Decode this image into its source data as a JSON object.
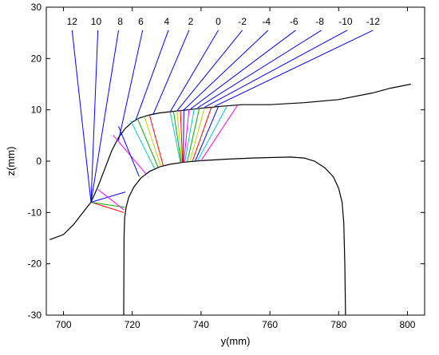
{
  "chart_data": {
    "type": "line",
    "xlabel": "y(mm)",
    "ylabel": "z(mm)",
    "xlim": [
      695,
      805
    ],
    "ylim": [
      -30,
      30
    ],
    "x_ticks": [
      "700",
      "720",
      "740",
      "760",
      "780",
      "800"
    ],
    "y_ticks": [
      "30",
      "20",
      "10",
      "0",
      "-10",
      "-20",
      "-30"
    ],
    "grid": false,
    "series": [
      {
        "color": "#000000",
        "points": [
          [
            696,
            -15.3
          ],
          [
            700,
            -14.3
          ],
          [
            703,
            -12.3
          ],
          [
            706,
            -9.7
          ],
          [
            708,
            -8.0
          ],
          [
            710,
            -5.0
          ],
          [
            712,
            -1.5
          ],
          [
            714,
            2.0
          ],
          [
            716,
            4.6
          ],
          [
            718,
            6.4
          ],
          [
            720,
            7.6
          ],
          [
            722,
            8.4
          ],
          [
            725,
            9.0
          ],
          [
            728,
            9.4
          ],
          [
            732,
            9.7
          ],
          [
            736,
            10.0
          ],
          [
            740,
            10.3
          ],
          [
            746,
            10.7
          ],
          [
            752,
            11.0
          ],
          [
            760,
            11.0
          ],
          [
            770,
            11.4
          ],
          [
            780,
            12.0
          ],
          [
            790,
            13.3
          ],
          [
            795,
            14.2
          ],
          [
            801,
            15.0
          ]
        ]
      },
      {
        "color": "#000000",
        "points": [
          [
            717.5,
            -30
          ],
          [
            717.6,
            -15
          ],
          [
            717.8,
            -11
          ],
          [
            718.2,
            -9
          ],
          [
            719,
            -7
          ],
          [
            720.5,
            -5
          ],
          [
            722.5,
            -3.3
          ],
          [
            725,
            -2.0
          ],
          [
            728,
            -1.1
          ],
          [
            731,
            -0.6
          ],
          [
            735,
            -0.2
          ],
          [
            740,
            0.1
          ],
          [
            748,
            0.4
          ],
          [
            755,
            0.6
          ],
          [
            760,
            0.7
          ],
          [
            766,
            0.8
          ],
          [
            770,
            0.6
          ],
          [
            773,
            0.0
          ],
          [
            776,
            -1.3
          ],
          [
            778.5,
            -3.1
          ],
          [
            780,
            -5.3
          ],
          [
            781,
            -8.0
          ],
          [
            781.5,
            -12
          ],
          [
            781.8,
            -20
          ],
          [
            782,
            -30
          ]
        ]
      }
    ],
    "rays": [
      {
        "label": "12",
        "label_pos": [
          702.5,
          26.6
        ],
        "x": [
          702.5,
          708.0
        ],
        "z": [
          25.5,
          -8.0
        ],
        "color": "#0000ff"
      },
      {
        "label": "10",
        "label_pos": [
          709.5,
          26.6
        ],
        "x": [
          710.0,
          708.0
        ],
        "z": [
          25.5,
          -8.0
        ],
        "color": "#0000ff"
      },
      {
        "label": "8",
        "label_pos": [
          716.5,
          26.6
        ],
        "x": [
          716.0,
          708.0
        ],
        "z": [
          25.5,
          -8.0
        ],
        "color": "#0000ff"
      },
      {
        "label": "6",
        "label_pos": [
          722.5,
          26.6
        ],
        "x": [
          723.0,
          716.0
        ],
        "z": [
          25.5,
          4.0
        ],
        "color": "#0000ff"
      },
      {
        "label": "4",
        "label_pos": [
          730.0,
          26.6
        ],
        "x": [
          730.5,
          721.0
        ],
        "z": [
          25.5,
          8.0
        ],
        "color": "#0000ff"
      },
      {
        "label": "2",
        "label_pos": [
          737.0,
          26.6
        ],
        "x": [
          736.5,
          726.0
        ],
        "z": [
          25.5,
          9.0
        ],
        "color": "#0000ff"
      },
      {
        "label": "0",
        "label_pos": [
          745.0,
          26.6
        ],
        "x": [
          745.0,
          731.0
        ],
        "z": [
          25.5,
          9.6
        ],
        "color": "#0000ff"
      },
      {
        "label": "-2",
        "label_pos": [
          752.0,
          26.6
        ],
        "x": [
          752.0,
          733.0
        ],
        "z": [
          25.5,
          9.8
        ],
        "color": "#0000ff"
      },
      {
        "label": "-4",
        "label_pos": [
          759.0,
          26.6
        ],
        "x": [
          759.5,
          735.0
        ],
        "z": [
          25.5,
          10.0
        ],
        "color": "#0000ff"
      },
      {
        "label": "-6",
        "label_pos": [
          767.0,
          26.6
        ],
        "x": [
          767.5,
          737.0
        ],
        "z": [
          25.5,
          10.2
        ],
        "color": "#0000ff"
      },
      {
        "label": "-8",
        "label_pos": [
          774.5,
          26.6
        ],
        "x": [
          775.0,
          739.0
        ],
        "z": [
          25.5,
          10.4
        ],
        "color": "#0000ff"
      },
      {
        "label": "-10",
        "label_pos": [
          782.0,
          26.6
        ],
        "x": [
          782.5,
          741.0
        ],
        "z": [
          25.5,
          10.5
        ],
        "color": "#0000ff"
      },
      {
        "label": "-12",
        "label_pos": [
          790.0,
          26.6
        ],
        "x": [
          790.0,
          744.0
        ],
        "z": [
          25.5,
          10.7
        ],
        "color": "#0000ff"
      }
    ],
    "contact_lines": [
      {
        "x": [
          708.0,
          717.5
        ],
        "z": [
          -8.0,
          -10.0
        ],
        "color": "#ff0000"
      },
      {
        "x": [
          708.0,
          717.8
        ],
        "z": [
          -8.0,
          -9.0
        ],
        "color": "#00aa00"
      },
      {
        "x": [
          708.0,
          718.0
        ],
        "z": [
          -8.0,
          -6.0
        ],
        "color": "#0000ff"
      },
      {
        "x": [
          710.0,
          717.6
        ],
        "z": [
          -5.5,
          -9.5
        ],
        "color": "#ff00ff"
      },
      {
        "x": [
          714.5,
          724.0
        ],
        "z": [
          5.0,
          -2.5
        ],
        "color": "#ff00ff"
      },
      {
        "x": [
          716.0,
          722.0
        ],
        "z": [
          6.8,
          -3.0
        ],
        "color": "#0000ff"
      },
      {
        "x": [
          719.5,
          726.5
        ],
        "z": [
          7.9,
          -1.5
        ],
        "color": "#00cccc"
      },
      {
        "x": [
          721.5,
          727.5
        ],
        "z": [
          8.3,
          -1.2
        ],
        "color": "#00aa00"
      },
      {
        "x": [
          723.5,
          728.3
        ],
        "z": [
          8.7,
          -1.0
        ],
        "color": "#cccc00"
      },
      {
        "x": [
          725.0,
          729.0
        ],
        "z": [
          9.0,
          -0.9
        ],
        "color": "#ff0000"
      },
      {
        "x": [
          731.0,
          734.0
        ],
        "z": [
          9.6,
          -0.2
        ],
        "color": "#00cccc"
      },
      {
        "x": [
          732.0,
          734.2
        ],
        "z": [
          9.7,
          -0.2
        ],
        "color": "#00aa00"
      },
      {
        "x": [
          733.0,
          734.4
        ],
        "z": [
          9.8,
          -0.2
        ],
        "color": "#cccc00"
      },
      {
        "x": [
          734.0,
          734.6
        ],
        "z": [
          9.9,
          -0.2
        ],
        "color": "#ff0000"
      },
      {
        "x": [
          735.0,
          734.8
        ],
        "z": [
          10.0,
          -0.2
        ],
        "color": "#0000ff"
      },
      {
        "x": [
          736.5,
          735.0
        ],
        "z": [
          10.1,
          -0.2
        ],
        "color": "#ff00ff"
      },
      {
        "x": [
          738.0,
          735.3
        ],
        "z": [
          10.2,
          -0.1
        ],
        "color": "#00cccc"
      },
      {
        "x": [
          739.5,
          736.0
        ],
        "z": [
          10.3,
          -0.1
        ],
        "color": "#00aa00"
      },
      {
        "x": [
          741.0,
          736.8
        ],
        "z": [
          10.4,
          0.0
        ],
        "color": "#cccc00"
      },
      {
        "x": [
          743.0,
          737.5
        ],
        "z": [
          10.5,
          0.0
        ],
        "color": "#ff0000"
      },
      {
        "x": [
          745.0,
          738.3
        ],
        "z": [
          10.6,
          0.0
        ],
        "color": "#0000ff"
      },
      {
        "x": [
          747.5,
          739.0
        ],
        "z": [
          10.7,
          0.1
        ],
        "color": "#00cccc"
      },
      {
        "x": [
          750.5,
          740.0
        ],
        "z": [
          10.8,
          0.1
        ],
        "color": "#ff00ff"
      }
    ]
  }
}
